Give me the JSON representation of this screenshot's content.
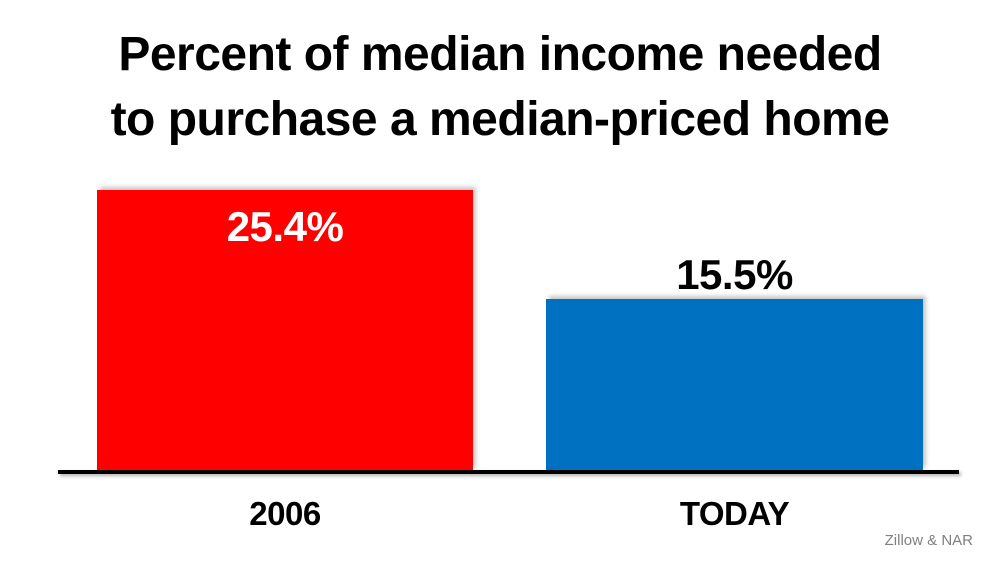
{
  "title": {
    "line1": "Percent of median income needed",
    "line2": "to purchase a median-priced home"
  },
  "source": "Zillow & NAR",
  "chart_data": {
    "type": "bar",
    "title": "Percent of median income needed to purchase a median-priced home",
    "categories": [
      "2006",
      "TODAY"
    ],
    "values": [
      25.4,
      15.5
    ],
    "value_labels": [
      "25.4%",
      "15.5%"
    ],
    "series_colors": [
      "#FF0000",
      "#0070C0"
    ],
    "value_label_colors": [
      "#FFFFFF",
      "#000000"
    ],
    "value_label_positions": [
      "inside-top",
      "above"
    ],
    "ylim": [
      0,
      25.4
    ],
    "axis_color": "#000000",
    "background_color": "#FFFFFF",
    "grid": false,
    "legend": "none",
    "source": "Zillow & NAR"
  }
}
